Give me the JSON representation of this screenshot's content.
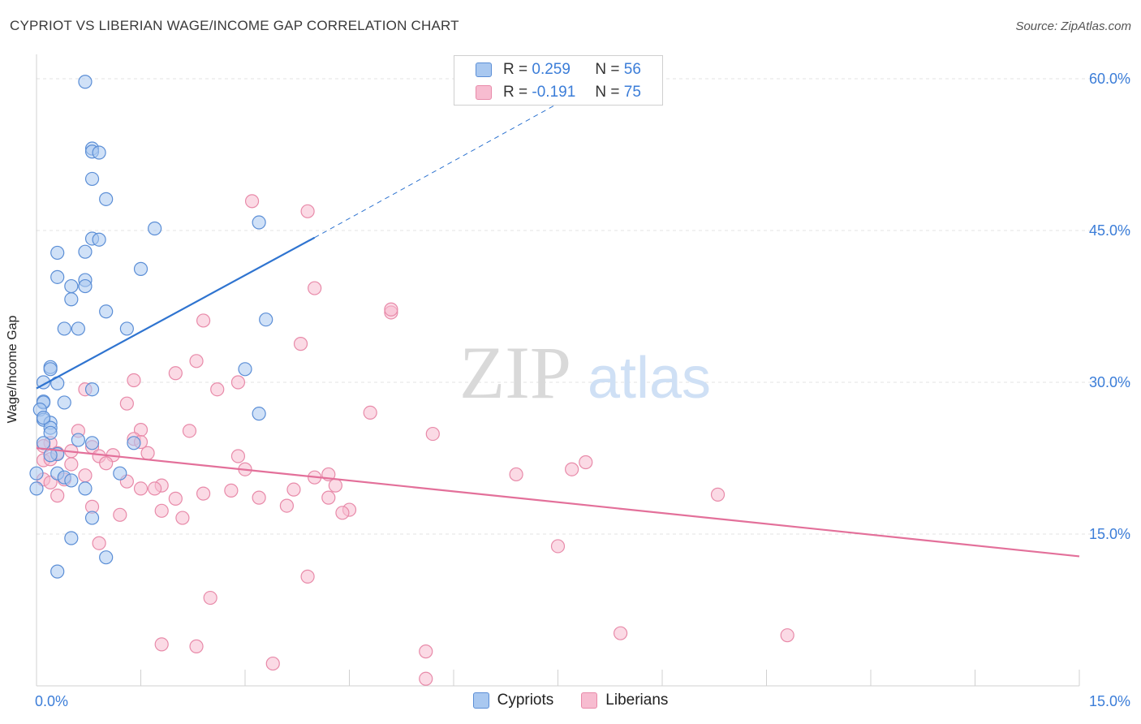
{
  "title": "CYPRIOT VS LIBERIAN WAGE/INCOME GAP CORRELATION CHART",
  "source": "Source: ZipAtlas.com",
  "watermark": {
    "zip": "ZIP",
    "atlas": "atlas"
  },
  "legend": {
    "rows": [
      {
        "r_label": "R =",
        "r_value": "0.259",
        "n_label": "N =",
        "n_value": "56"
      },
      {
        "r_label": "R =",
        "r_value": "-0.191",
        "n_label": "N =",
        "n_value": "75"
      }
    ]
  },
  "bottom_legend": {
    "cypriots": "Cypriots",
    "liberians": "Liberians"
  },
  "colors": {
    "cypriots_fill": "#a9c8f0",
    "cypriots_stroke": "#5b8ed6",
    "cypriots_line": "#2f74d0",
    "liberians_fill": "#f7bcd0",
    "liberians_stroke": "#e88aa9",
    "liberians_line": "#e3709a",
    "tick_label": "#3b7dd8",
    "grid": "#e3e3e3"
  },
  "chart_data": {
    "type": "scatter",
    "title": "CYPRIOT VS LIBERIAN WAGE/INCOME GAP CORRELATION CHART",
    "xlabel": "",
    "ylabel": "Wage/Income Gap",
    "xlim": [
      0,
      15
    ],
    "ylim": [
      0,
      60
    ],
    "x_tick_labels": [
      {
        "v": 0,
        "label": "0.0%"
      },
      {
        "v": 15,
        "label": "15.0%"
      }
    ],
    "y_tick_labels": [
      {
        "v": 15,
        "label": "15.0%"
      },
      {
        "v": 30,
        "label": "30.0%"
      },
      {
        "v": 45,
        "label": "45.0%"
      },
      {
        "v": 60,
        "label": "60.0%"
      }
    ],
    "grid": true,
    "series": [
      {
        "name": "Cypriots",
        "trend": {
          "x0": 0.0,
          "y0": 29.4,
          "x1": 4.0,
          "y1": 44.3,
          "dash_to_x": 8.2,
          "dash_to_y": 60.2
        },
        "points": [
          [
            0.7,
            59.7
          ],
          [
            0.8,
            53.1
          ],
          [
            0.8,
            52.8
          ],
          [
            0.9,
            52.7
          ],
          [
            0.8,
            50.1
          ],
          [
            1.0,
            48.1
          ],
          [
            1.7,
            45.2
          ],
          [
            3.2,
            45.8
          ],
          [
            0.8,
            44.2
          ],
          [
            0.9,
            44.1
          ],
          [
            0.7,
            42.9
          ],
          [
            0.3,
            42.8
          ],
          [
            1.5,
            41.2
          ],
          [
            0.3,
            40.4
          ],
          [
            0.7,
            40.1
          ],
          [
            0.7,
            39.5
          ],
          [
            0.5,
            39.5
          ],
          [
            0.5,
            38.2
          ],
          [
            1.0,
            37.0
          ],
          [
            3.3,
            36.2
          ],
          [
            0.4,
            35.3
          ],
          [
            0.6,
            35.3
          ],
          [
            1.3,
            35.3
          ],
          [
            0.2,
            31.5
          ],
          [
            0.2,
            31.3
          ],
          [
            3.0,
            31.3
          ],
          [
            0.1,
            30.0
          ],
          [
            0.3,
            29.9
          ],
          [
            0.8,
            29.3
          ],
          [
            0.1,
            28.1
          ],
          [
            0.1,
            28.0
          ],
          [
            0.4,
            28.0
          ],
          [
            0.05,
            27.3
          ],
          [
            3.2,
            26.9
          ],
          [
            0.1,
            26.3
          ],
          [
            0.2,
            26.0
          ],
          [
            0.2,
            25.5
          ],
          [
            0.2,
            25.0
          ],
          [
            0.6,
            24.3
          ],
          [
            0.8,
            24.0
          ],
          [
            1.4,
            24.0
          ],
          [
            0.3,
            22.9
          ],
          [
            0.2,
            22.8
          ],
          [
            0.0,
            21.0
          ],
          [
            0.3,
            21.0
          ],
          [
            1.2,
            21.0
          ],
          [
            0.4,
            20.6
          ],
          [
            0.5,
            20.3
          ],
          [
            0.0,
            19.5
          ],
          [
            0.7,
            19.5
          ],
          [
            0.8,
            16.6
          ],
          [
            0.5,
            14.6
          ],
          [
            1.0,
            12.7
          ],
          [
            0.3,
            11.3
          ],
          [
            0.1,
            26.5
          ],
          [
            0.1,
            24.0
          ]
        ]
      },
      {
        "name": "Liberians",
        "trend": {
          "x0": 0.0,
          "y0": 23.5,
          "x1": 15.0,
          "y1": 12.8
        },
        "points": [
          [
            3.1,
            47.9
          ],
          [
            3.9,
            46.9
          ],
          [
            4.0,
            39.3
          ],
          [
            5.1,
            36.9
          ],
          [
            5.1,
            37.2
          ],
          [
            2.4,
            36.1
          ],
          [
            3.8,
            33.8
          ],
          [
            2.3,
            32.1
          ],
          [
            2.0,
            30.9
          ],
          [
            1.4,
            30.2
          ],
          [
            2.9,
            30.0
          ],
          [
            0.7,
            29.3
          ],
          [
            2.6,
            29.3
          ],
          [
            1.3,
            27.9
          ],
          [
            4.8,
            27.0
          ],
          [
            0.6,
            25.2
          ],
          [
            1.5,
            25.3
          ],
          [
            2.2,
            25.2
          ],
          [
            5.7,
            24.9
          ],
          [
            1.4,
            24.4
          ],
          [
            1.5,
            24.1
          ],
          [
            0.2,
            24.0
          ],
          [
            0.1,
            23.7
          ],
          [
            0.8,
            23.6
          ],
          [
            0.5,
            23.2
          ],
          [
            0.3,
            23.0
          ],
          [
            1.6,
            23.0
          ],
          [
            1.1,
            22.8
          ],
          [
            0.9,
            22.7
          ],
          [
            2.9,
            22.7
          ],
          [
            0.1,
            22.3
          ],
          [
            0.2,
            22.4
          ],
          [
            7.9,
            22.1
          ],
          [
            1.0,
            22.0
          ],
          [
            0.5,
            21.9
          ],
          [
            3.0,
            21.4
          ],
          [
            7.7,
            21.4
          ],
          [
            6.9,
            20.9
          ],
          [
            0.7,
            20.8
          ],
          [
            4.2,
            20.9
          ],
          [
            4.0,
            20.6
          ],
          [
            0.4,
            20.4
          ],
          [
            1.3,
            20.2
          ],
          [
            0.1,
            20.4
          ],
          [
            0.2,
            20.1
          ],
          [
            1.8,
            19.8
          ],
          [
            4.3,
            19.8
          ],
          [
            1.5,
            19.5
          ],
          [
            1.7,
            19.5
          ],
          [
            3.7,
            19.4
          ],
          [
            2.8,
            19.3
          ],
          [
            2.4,
            19.0
          ],
          [
            9.8,
            18.9
          ],
          [
            0.3,
            18.8
          ],
          [
            2.0,
            18.5
          ],
          [
            3.2,
            18.6
          ],
          [
            4.2,
            18.6
          ],
          [
            3.6,
            17.8
          ],
          [
            0.8,
            17.7
          ],
          [
            1.8,
            17.3
          ],
          [
            4.5,
            17.4
          ],
          [
            4.4,
            17.1
          ],
          [
            1.2,
            16.9
          ],
          [
            2.1,
            16.6
          ],
          [
            0.9,
            14.1
          ],
          [
            7.5,
            13.8
          ],
          [
            3.9,
            10.8
          ],
          [
            2.5,
            8.7
          ],
          [
            8.4,
            5.2
          ],
          [
            10.8,
            5.0
          ],
          [
            1.8,
            4.1
          ],
          [
            2.3,
            3.9
          ],
          [
            5.6,
            3.4
          ],
          [
            3.4,
            2.2
          ],
          [
            5.6,
            0.7
          ]
        ]
      }
    ]
  }
}
